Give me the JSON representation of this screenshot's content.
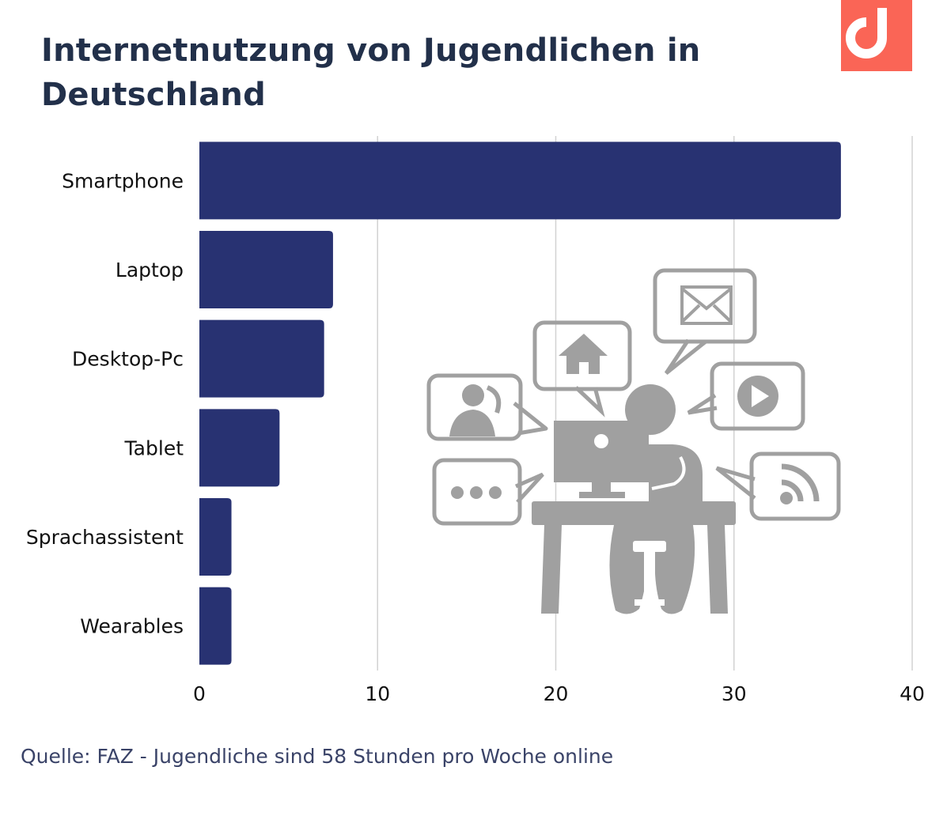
{
  "header": {
    "title": "Internetnutzung von Jugendlichen in Deutschland"
  },
  "logo": {
    "icon": "brand-logo-icon",
    "color": "#fa6556"
  },
  "illustration": {
    "icon": "person-at-computer-icon",
    "color": "#a0a0a0"
  },
  "chart_data": {
    "type": "bar",
    "orientation": "horizontal",
    "categories": [
      "Smartphone",
      "Laptop",
      "Desktop-Pc",
      "Tablet",
      "Sprachassistent",
      "Wearables"
    ],
    "values": [
      36,
      7.5,
      7,
      4.5,
      1.8,
      1.8
    ],
    "xlim": [
      0,
      40
    ],
    "xticks": [
      0,
      10,
      20,
      30,
      40
    ],
    "xlabel": "",
    "ylabel": "",
    "grid": "vertical",
    "bar_color": "#283272"
  },
  "footer": {
    "source": "Quelle: FAZ - Jugendliche sind 58 Stunden pro Woche online"
  }
}
